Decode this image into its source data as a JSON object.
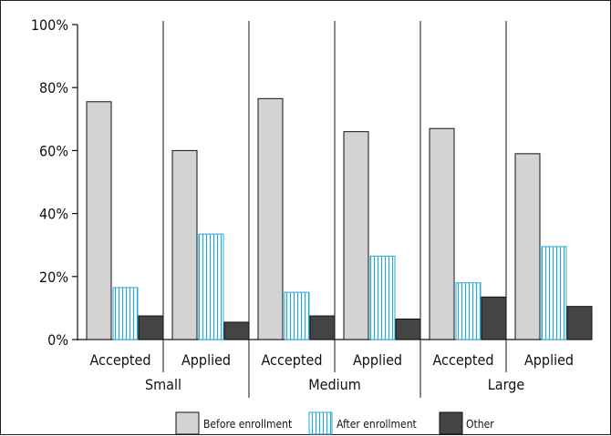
{
  "chart_data": {
    "type": "bar",
    "title": "",
    "xlabel": "",
    "ylabel": "",
    "ylim": [
      0,
      100
    ],
    "y_ticks": [
      "0%",
      "20%",
      "40%",
      "60%",
      "80%",
      "100%"
    ],
    "groups": [
      "Small",
      "Medium",
      "Large"
    ],
    "subcategories": [
      "Accepted",
      "Applied"
    ],
    "categories": [
      "Small Accepted",
      "Small Applied",
      "Medium Accepted",
      "Medium Applied",
      "Large Accepted",
      "Large Applied"
    ],
    "series": [
      {
        "name": "Before enrollment",
        "color": "#d3d3d3",
        "pattern": "solid",
        "values": [
          75.5,
          60,
          76.5,
          66,
          67,
          59
        ]
      },
      {
        "name": "After enrollment",
        "color": "#2aa7d9",
        "pattern": "vertical-stripes",
        "values": [
          16.5,
          33.5,
          15,
          26.5,
          18,
          29.5
        ]
      },
      {
        "name": "Other",
        "color": "#444444",
        "pattern": "solid",
        "values": [
          7.5,
          5.5,
          7.5,
          6.5,
          13.5,
          10.5
        ]
      }
    ],
    "legend_position": "bottom",
    "grid": false
  }
}
